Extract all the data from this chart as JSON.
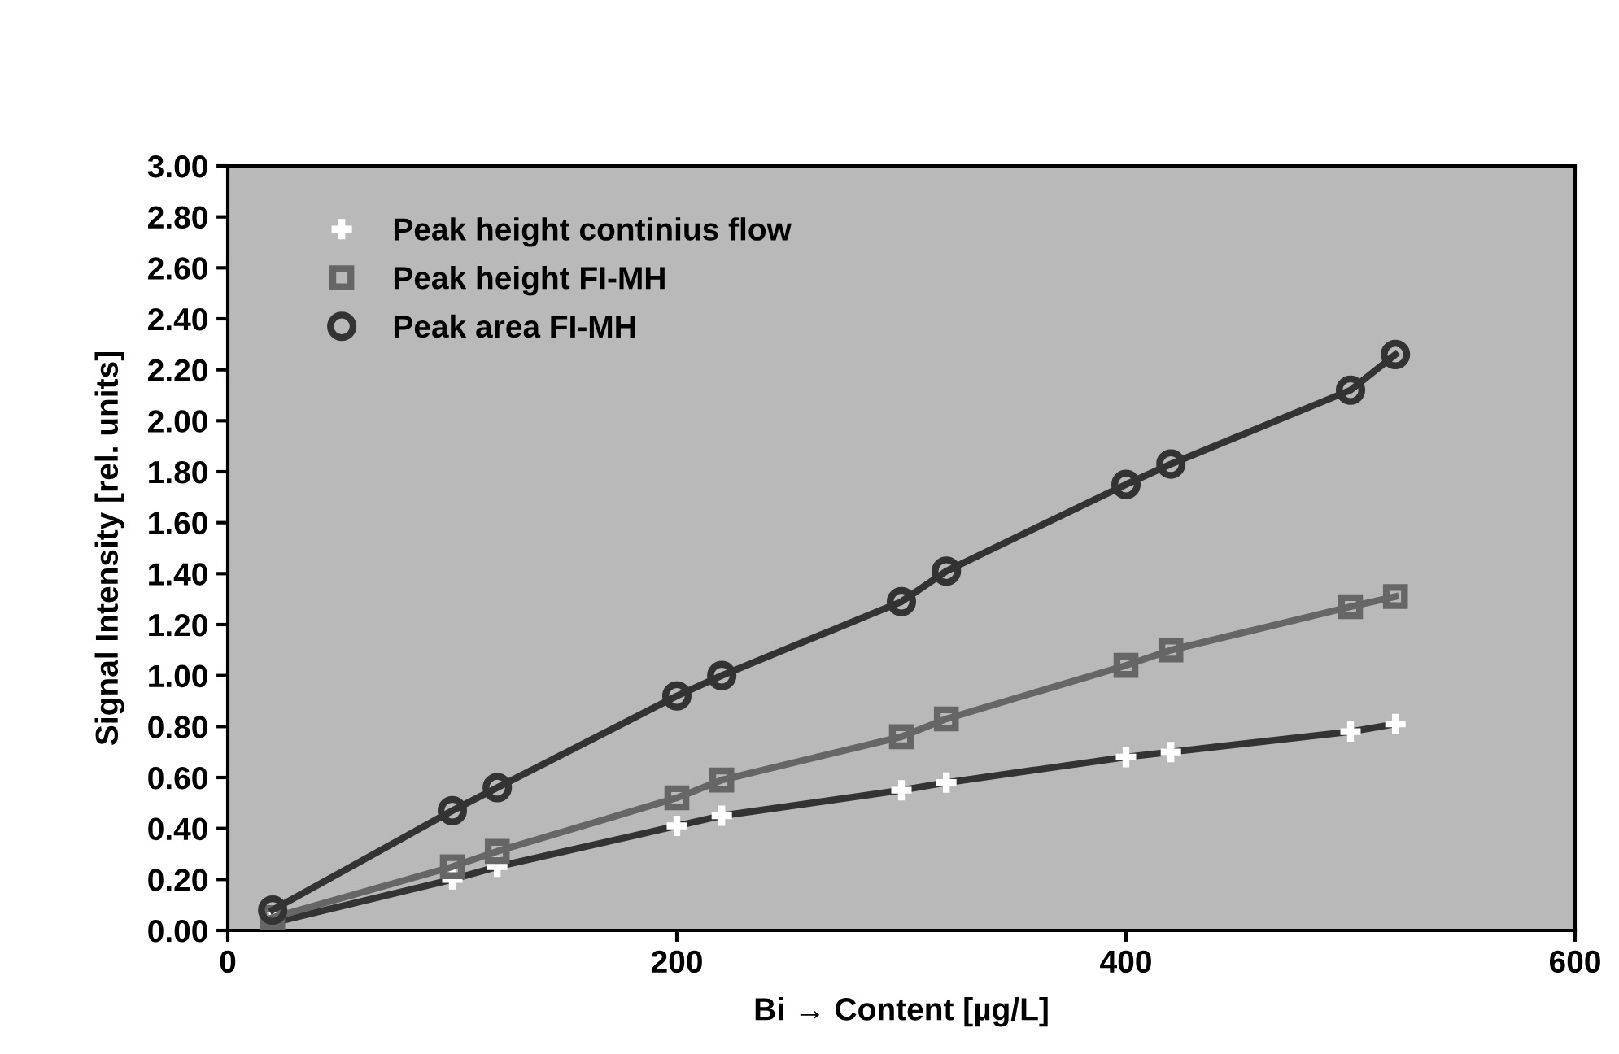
{
  "chart_data": {
    "type": "line",
    "xlabel": "Bi → Content [µg/L]",
    "ylabel": "Signal Intensity [rel. units]",
    "x": [
      20,
      100,
      120,
      200,
      220,
      300,
      320,
      400,
      420,
      500,
      520
    ],
    "series": [
      {
        "name": "Peak height continius flow",
        "color": "#333333",
        "marker": "cross",
        "values": [
          0.03,
          0.2,
          0.25,
          0.41,
          0.45,
          0.55,
          0.58,
          0.68,
          0.7,
          0.78,
          0.81
        ]
      },
      {
        "name": "Peak height FI-MH",
        "color": "#666666",
        "marker": "square",
        "values": [
          0.05,
          0.25,
          0.31,
          0.52,
          0.59,
          0.76,
          0.83,
          1.04,
          1.1,
          1.27,
          1.31
        ]
      },
      {
        "name": "Peak area FI-MH",
        "color": "#333333",
        "marker": "circle",
        "values": [
          0.08,
          0.47,
          0.56,
          0.92,
          1.0,
          1.29,
          1.41,
          1.75,
          1.83,
          2.12,
          2.26
        ]
      }
    ],
    "xlim": [
      0,
      600
    ],
    "xticks": [
      0,
      200,
      400,
      600
    ],
    "ylim": [
      0,
      3
    ],
    "yticks": [
      {
        "value": 0,
        "label": "0.00"
      },
      {
        "value": 0.2,
        "label": "0.20"
      },
      {
        "value": 0.4,
        "label": "0.40"
      },
      {
        "value": 0.6,
        "label": "0.60"
      },
      {
        "value": 0.8,
        "label": "0.80"
      },
      {
        "value": 1.0,
        "label": "1.00"
      },
      {
        "value": 1.2,
        "label": "1.20"
      },
      {
        "value": 1.4,
        "label": "1.40"
      },
      {
        "value": 1.6,
        "label": "1.60"
      },
      {
        "value": 1.8,
        "label": "1.80"
      },
      {
        "value": 2.0,
        "label": "2.00"
      },
      {
        "value": 2.2,
        "label": "2.20"
      },
      {
        "value": 2.4,
        "label": "2.40"
      },
      {
        "value": 2.6,
        "label": "2.60"
      },
      {
        "value": 2.8,
        "label": "2.80"
      },
      {
        "value": 3.0,
        "label": "3.00"
      }
    ],
    "legend": "top left",
    "grid": false
  }
}
